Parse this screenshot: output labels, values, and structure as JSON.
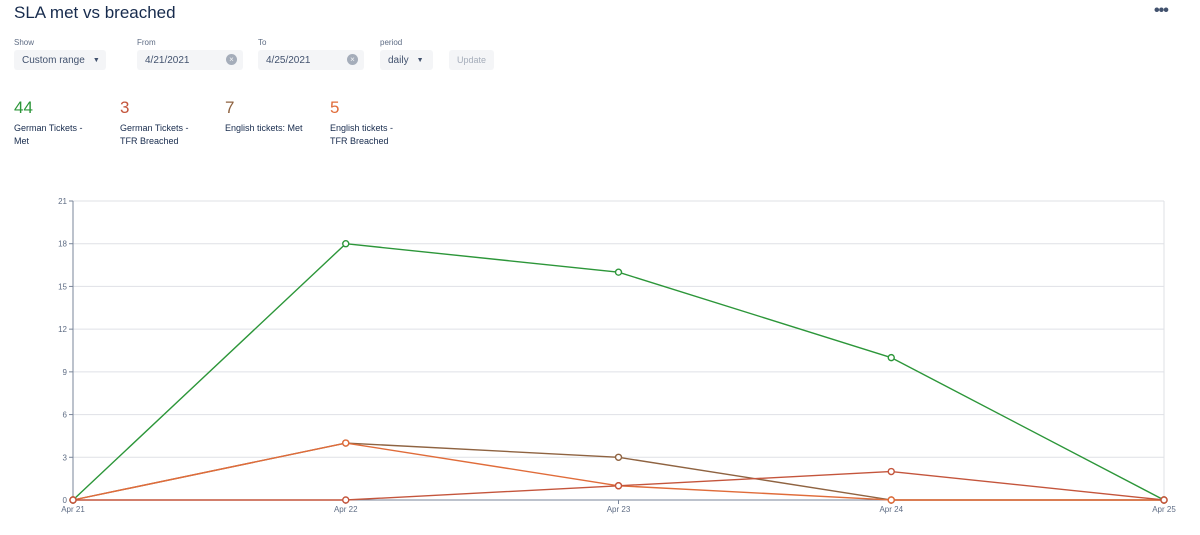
{
  "header": {
    "title": "SLA met vs breached",
    "more_icon": "more-horizontal-icon",
    "more_glyph": "•••"
  },
  "filters": {
    "show_label": "Show",
    "show_value": "Custom range",
    "from_label": "From",
    "from_value": "4/21/2021",
    "to_label": "To",
    "to_value": "4/25/2021",
    "period_label": "period",
    "period_value": "daily",
    "update_label": "Update",
    "chevron_glyph": "▼",
    "clear_glyph": "×"
  },
  "stats": [
    {
      "value": "44",
      "label_line1": "German Tickets -",
      "label_line2": "Met",
      "color": "#2c9639"
    },
    {
      "value": "3",
      "label_line1": "German Tickets -",
      "label_line2": "TFR Breached",
      "color": "#c4553c"
    },
    {
      "value": "7",
      "label_line1": "English tickets: Met",
      "label_line2": "",
      "color": "#8f6341"
    },
    {
      "value": "5",
      "label_line1": "English tickets -",
      "label_line2": "TFR Breached",
      "color": "#e06c3a"
    }
  ],
  "chart_data": {
    "type": "line",
    "categories": [
      "Apr 21",
      "Apr 22",
      "Apr 23",
      "Apr 24",
      "Apr 25"
    ],
    "ylim": [
      0,
      21
    ],
    "yticks": [
      0,
      3,
      6,
      9,
      12,
      15,
      18,
      21
    ],
    "grid": true,
    "series": [
      {
        "name": "German Tickets - Met",
        "color": "#2c9639",
        "values": [
          0,
          18,
          16,
          10,
          0
        ]
      },
      {
        "name": "English tickets: Met",
        "color": "#8f6341",
        "values": [
          0,
          4,
          3,
          0,
          0
        ]
      },
      {
        "name": "English tickets - TFR Breached",
        "color": "#e06c3a",
        "values": [
          0,
          4,
          1,
          0,
          0
        ]
      },
      {
        "name": "German Tickets - TFR Breached",
        "color": "#c4553c",
        "values": [
          0,
          0,
          1,
          2,
          0
        ]
      }
    ]
  }
}
